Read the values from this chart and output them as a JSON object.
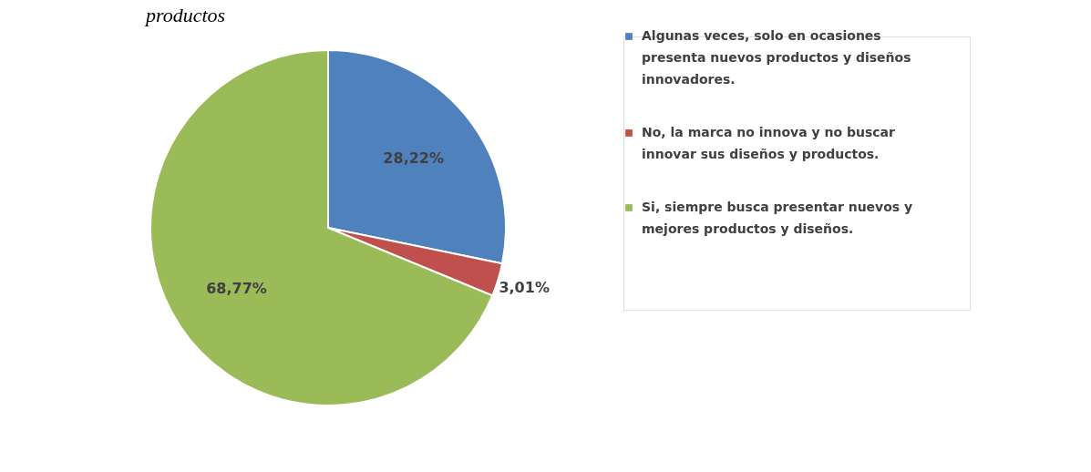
{
  "chart_data": {
    "type": "pie",
    "title": "productos",
    "categories": [
      "Algunas veces, solo en ocasiones presenta nuevos productos y diseños innovadores.",
      "No, la marca no innova y no buscar innovar sus diseños y productos.",
      "Si, siempre busca presentar nuevos y mejores productos y diseños."
    ],
    "values": [
      28.22,
      3.01,
      68.77
    ],
    "colors": [
      "#4f81bd",
      "#c0504d",
      "#9bbb59"
    ],
    "value_labels": [
      "28,22%",
      "3,01%",
      "68,77%"
    ],
    "legend": "right"
  }
}
